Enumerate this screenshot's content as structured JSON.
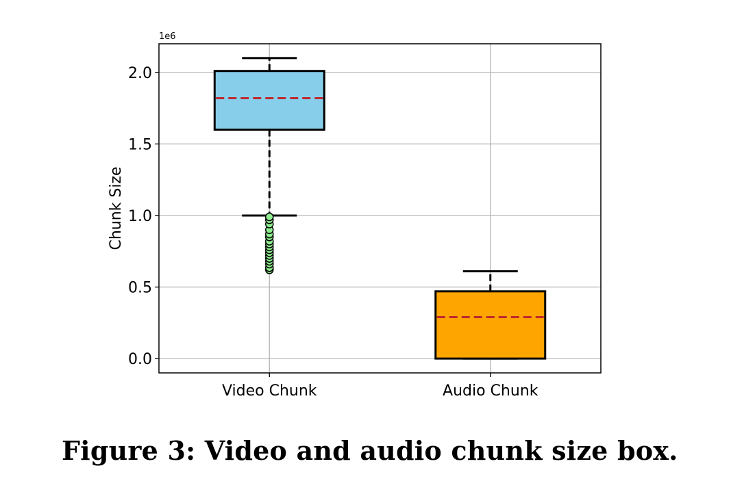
{
  "chart_data": {
    "type": "box",
    "ylabel": "Chunk Size",
    "y_offset_label": "1e6",
    "ylim": [
      -0.1,
      2.2
    ],
    "y_ticks": [
      0.0,
      0.5,
      1.0,
      1.5,
      2.0
    ],
    "y_tick_labels": [
      "0.0",
      "0.5",
      "1.0",
      "1.5",
      "2.0"
    ],
    "grid": true,
    "categories": [
      "Video Chunk",
      "Audio Chunk"
    ],
    "series": [
      {
        "category": "Video Chunk",
        "whisker_low": 1.0,
        "q1": 1.6,
        "median": 1.82,
        "q3": 2.01,
        "whisker_high": 2.1,
        "outliers": [
          0.62,
          0.635,
          0.66,
          0.68,
          0.7,
          0.72,
          0.74,
          0.76,
          0.78,
          0.8,
          0.82,
          0.85,
          0.87,
          0.9,
          0.94,
          0.97,
          0.99
        ],
        "box_color": "#87CEEB",
        "outlier_color": "#90EE90"
      },
      {
        "category": "Audio Chunk",
        "whisker_low": 0.0,
        "q1": 0.0,
        "median": 0.29,
        "q3": 0.47,
        "whisker_high": 0.61,
        "outliers": [],
        "box_color": "#FFA500",
        "outlier_color": "#90EE90"
      }
    ],
    "median_color": "#C0282D",
    "grid_color": "#b0b0b0"
  },
  "caption": "Figure 3: Video and audio chunk size box."
}
